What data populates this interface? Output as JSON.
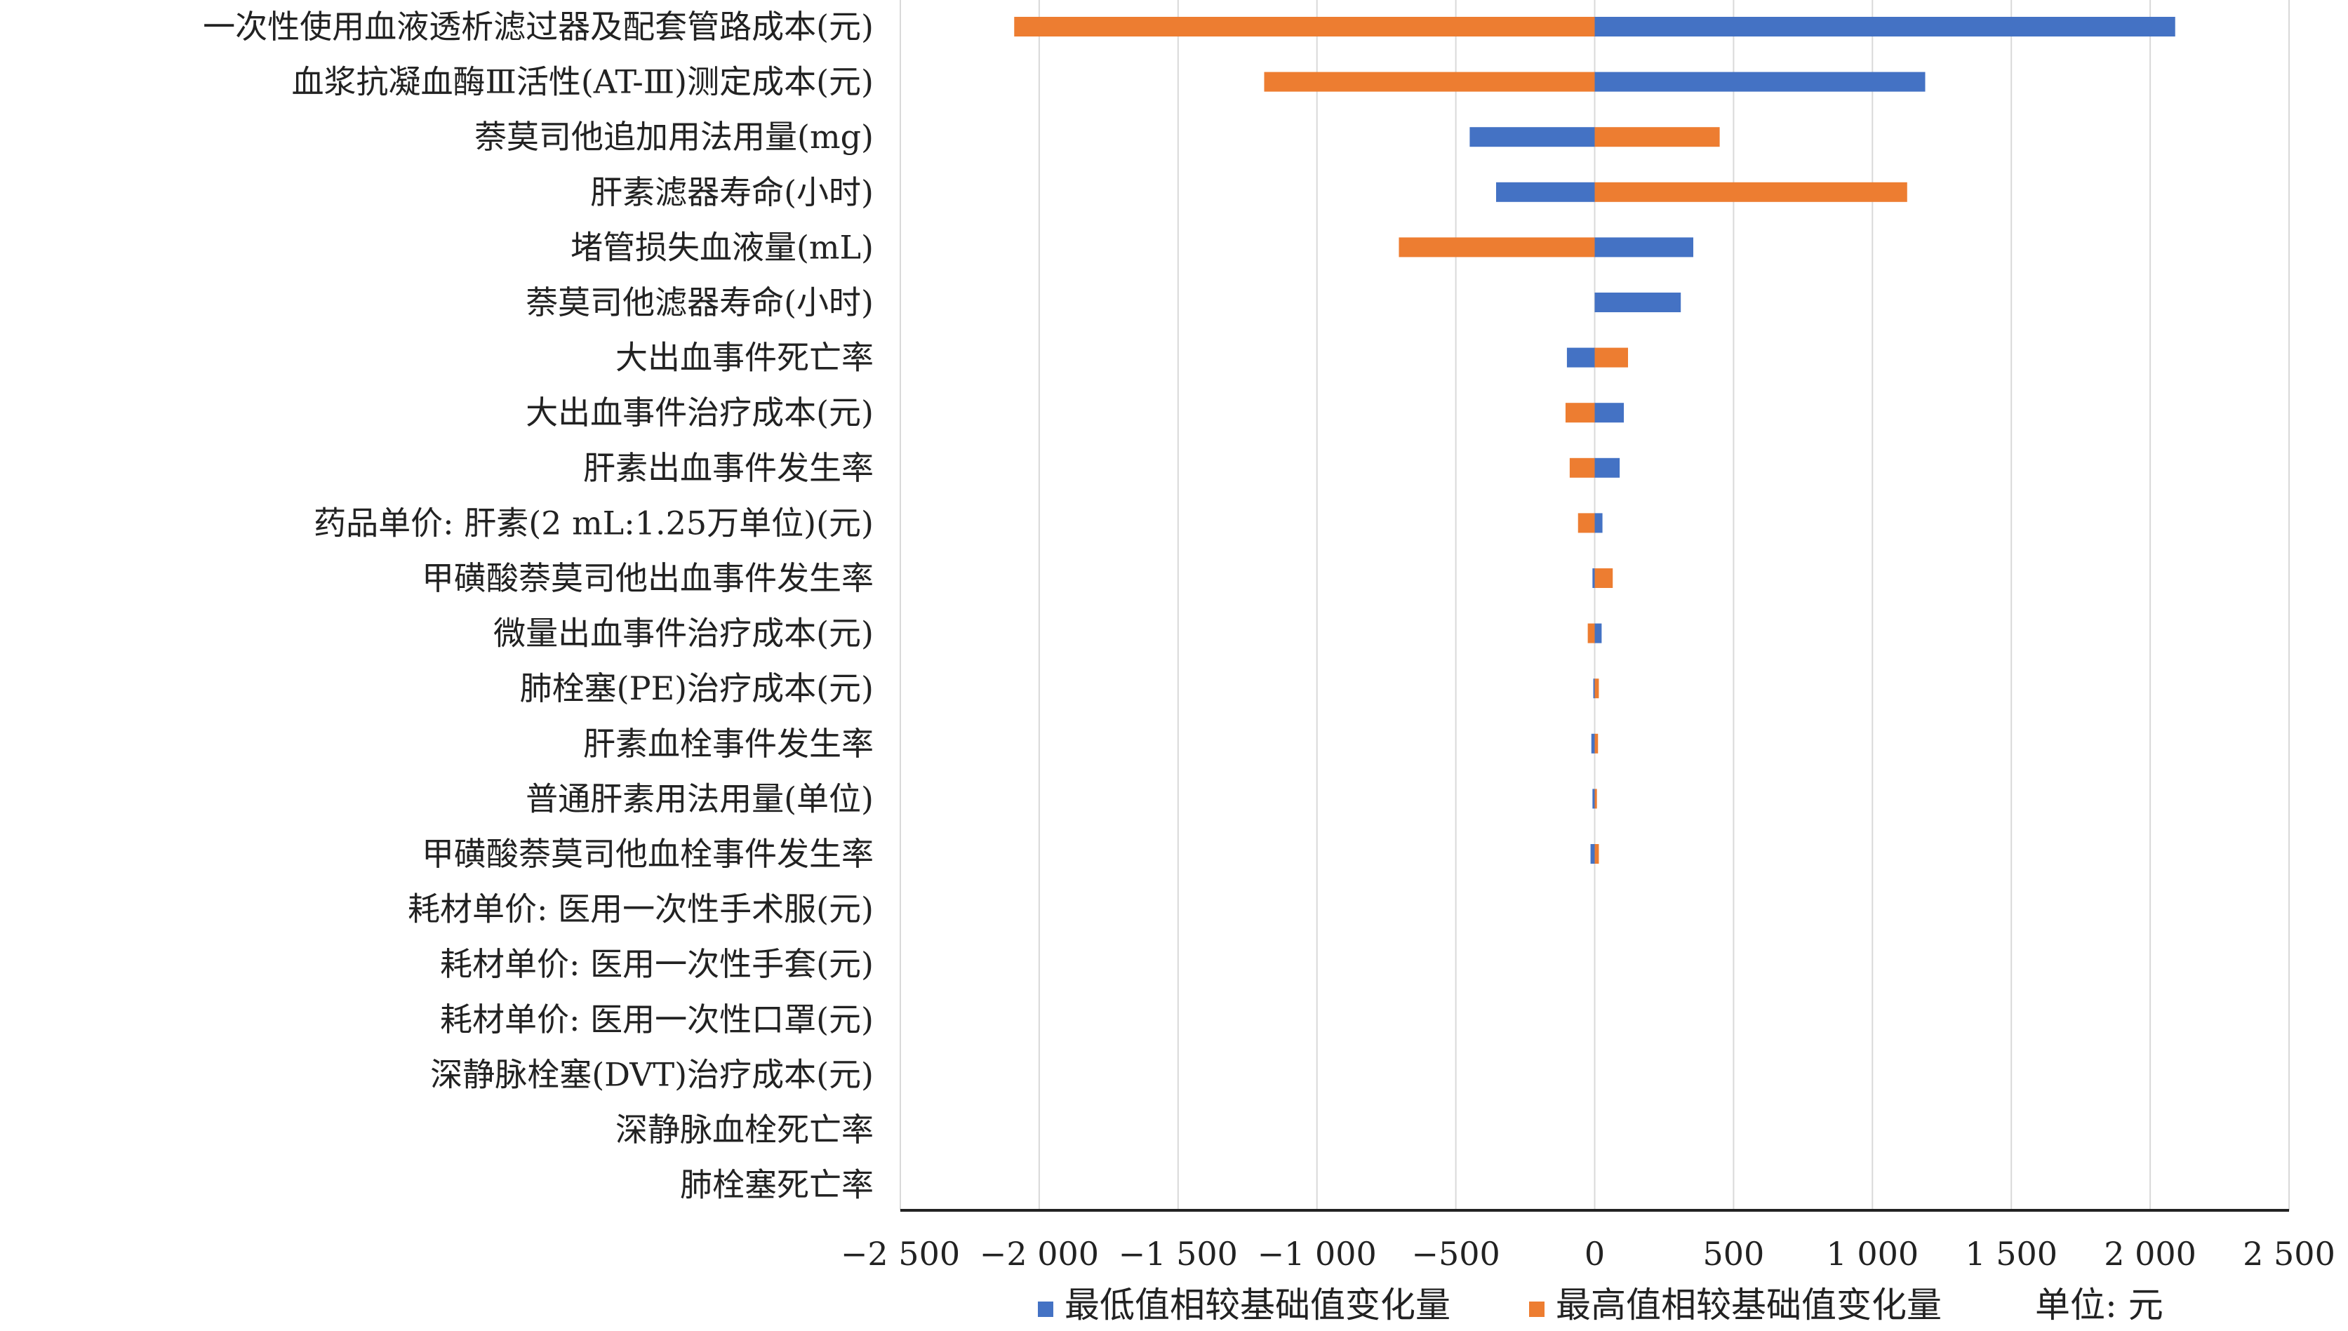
{
  "chart_data": {
    "type": "bar",
    "orientation": "horizontal",
    "title": "",
    "xlabel": "",
    "ylabel": "",
    "xlim": [
      -2500,
      2500
    ],
    "xticks": [
      -2500,
      -2000,
      -1500,
      -1000,
      -500,
      0,
      500,
      1000,
      1500,
      2000,
      2500
    ],
    "xtick_labels": [
      "−2 500",
      "−2 000",
      "−1 500",
      "−1 000",
      "−500",
      "0",
      "500",
      "1 000",
      "1 500",
      "2 000",
      "2 500"
    ],
    "grid": "vertical",
    "legend_position": "bottom",
    "unit_note": "单位: 元",
    "categories": [
      "一次性使用血液透析滤过器及配套管路成本(元)",
      "血浆抗凝血酶Ⅲ活性(AT-Ⅲ)测定成本(元)",
      "萘莫司他追加用法用量(mg)",
      "肝素滤器寿命(小时)",
      "堵管损失血液量(mL)",
      "萘莫司他滤器寿命(小时)",
      "大出血事件死亡率",
      "大出血事件治疗成本(元)",
      "肝素出血事件发生率",
      "药品单价: 肝素(2 mL:1.25万单位)(元)",
      "甲磺酸萘莫司他出血事件发生率",
      "微量出血事件治疗成本(元)",
      "肺栓塞(PE)治疗成本(元)",
      "肝素血栓事件发生率",
      "普通肝素用法用量(单位)",
      "甲磺酸萘莫司他血栓事件发生率",
      "耗材单价: 医用一次性手术服(元)",
      "耗材单价: 医用一次性手套(元)",
      "耗材单价: 医用一次性口罩(元)",
      "深静脉栓塞(DVT)治疗成本(元)",
      "深静脉血栓死亡率",
      "肺栓塞死亡率"
    ],
    "series": [
      {
        "name": "最低值相较基础值变化量",
        "color": "#4472c4",
        "values": [
          2090,
          1190,
          -450,
          -355,
          355,
          310,
          -100,
          105,
          90,
          28,
          -8,
          25,
          -5,
          -12,
          -8,
          -15,
          0,
          0,
          0,
          0,
          0,
          0
        ]
      },
      {
        "name": "最高值相较基础值变化量",
        "color": "#ed7d31",
        "values": [
          -2090,
          -1190,
          450,
          1125,
          -705,
          0,
          120,
          -105,
          -90,
          -60,
          65,
          -25,
          15,
          12,
          8,
          15,
          0,
          0,
          0,
          0,
          0,
          0
        ]
      }
    ]
  }
}
